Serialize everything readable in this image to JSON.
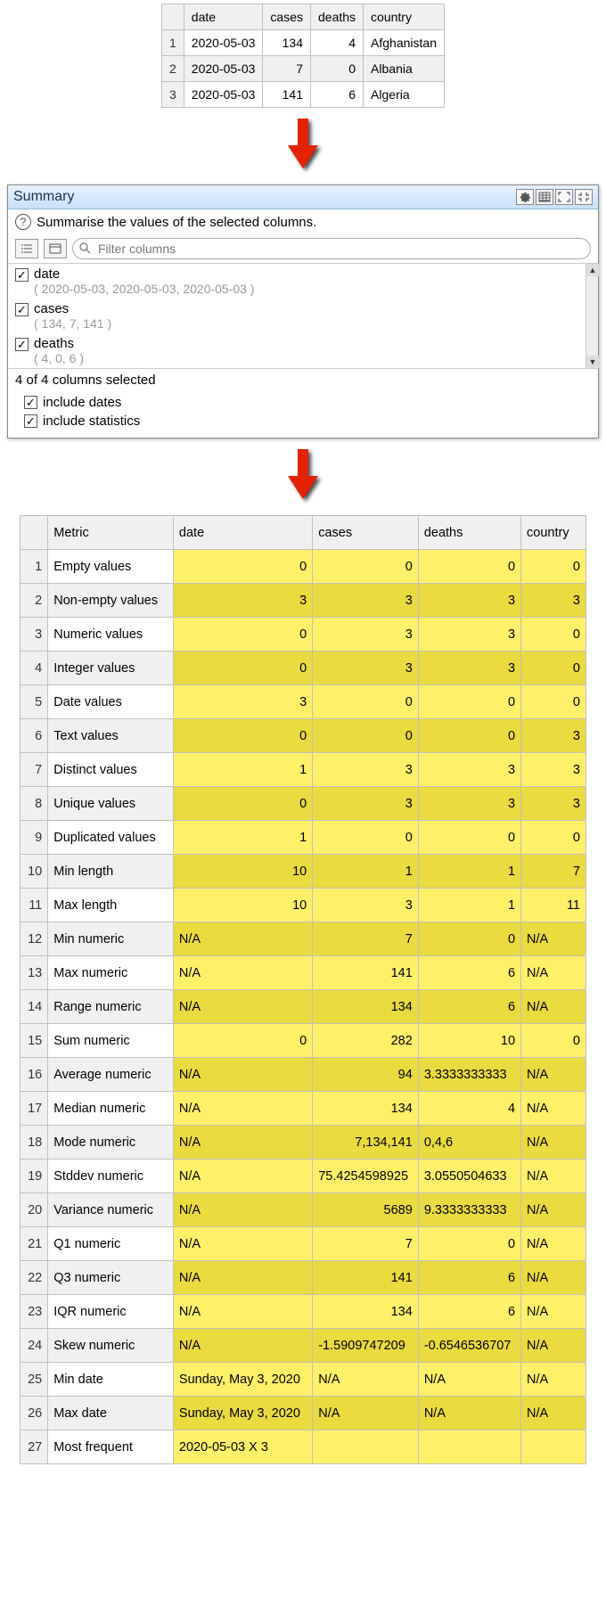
{
  "top_table": {
    "headers": [
      "date",
      "cases",
      "deaths",
      "country"
    ],
    "rows": [
      {
        "n": "1",
        "date": "2020-05-03",
        "cases": "134",
        "deaths": "4",
        "country": "Afghanistan"
      },
      {
        "n": "2",
        "date": "2020-05-03",
        "cases": "7",
        "deaths": "0",
        "country": "Albania"
      },
      {
        "n": "3",
        "date": "2020-05-03",
        "cases": "141",
        "deaths": "6",
        "country": "Algeria"
      }
    ]
  },
  "arrow_color": "#e32200",
  "summary": {
    "title": "Summary",
    "desc": "Summarise the values of the selected columns.",
    "filter_placeholder": "Filter columns",
    "columns": [
      {
        "checked": true,
        "name": "date",
        "values": "( 2020-05-03, 2020-05-03, 2020-05-03 )"
      },
      {
        "checked": true,
        "name": "cases",
        "values": "( 134, 7, 141 )"
      },
      {
        "checked": true,
        "name": "deaths",
        "values": "( 4, 0, 6 )"
      }
    ],
    "selected_text": "4 of 4 columns selected",
    "options": [
      {
        "checked": true,
        "label": "include dates"
      },
      {
        "checked": true,
        "label": "include statistics"
      }
    ]
  },
  "stats": {
    "headers": [
      "Metric",
      "date",
      "cases",
      "deaths",
      "country"
    ],
    "rows": [
      {
        "n": "1",
        "metric": "Empty values",
        "date": {
          "v": "0",
          "a": "r"
        },
        "cases": {
          "v": "0",
          "a": "r"
        },
        "deaths": {
          "v": "0",
          "a": "r"
        },
        "country": {
          "v": "0",
          "a": "r"
        }
      },
      {
        "n": "2",
        "metric": "Non-empty values",
        "date": {
          "v": "3",
          "a": "r"
        },
        "cases": {
          "v": "3",
          "a": "r"
        },
        "deaths": {
          "v": "3",
          "a": "r"
        },
        "country": {
          "v": "3",
          "a": "r"
        }
      },
      {
        "n": "3",
        "metric": "Numeric values",
        "date": {
          "v": "0",
          "a": "r"
        },
        "cases": {
          "v": "3",
          "a": "r"
        },
        "deaths": {
          "v": "3",
          "a": "r"
        },
        "country": {
          "v": "0",
          "a": "r"
        }
      },
      {
        "n": "4",
        "metric": "Integer values",
        "date": {
          "v": "0",
          "a": "r"
        },
        "cases": {
          "v": "3",
          "a": "r"
        },
        "deaths": {
          "v": "3",
          "a": "r"
        },
        "country": {
          "v": "0",
          "a": "r"
        }
      },
      {
        "n": "5",
        "metric": "Date values",
        "date": {
          "v": "3",
          "a": "r"
        },
        "cases": {
          "v": "0",
          "a": "r"
        },
        "deaths": {
          "v": "0",
          "a": "r"
        },
        "country": {
          "v": "0",
          "a": "r"
        }
      },
      {
        "n": "6",
        "metric": "Text values",
        "date": {
          "v": "0",
          "a": "r"
        },
        "cases": {
          "v": "0",
          "a": "r"
        },
        "deaths": {
          "v": "0",
          "a": "r"
        },
        "country": {
          "v": "3",
          "a": "r"
        }
      },
      {
        "n": "7",
        "metric": "Distinct values",
        "date": {
          "v": "1",
          "a": "r"
        },
        "cases": {
          "v": "3",
          "a": "r"
        },
        "deaths": {
          "v": "3",
          "a": "r"
        },
        "country": {
          "v": "3",
          "a": "r"
        }
      },
      {
        "n": "8",
        "metric": "Unique values",
        "date": {
          "v": "0",
          "a": "r"
        },
        "cases": {
          "v": "3",
          "a": "r"
        },
        "deaths": {
          "v": "3",
          "a": "r"
        },
        "country": {
          "v": "3",
          "a": "r"
        }
      },
      {
        "n": "9",
        "metric": "Duplicated values",
        "date": {
          "v": "1",
          "a": "r"
        },
        "cases": {
          "v": "0",
          "a": "r"
        },
        "deaths": {
          "v": "0",
          "a": "r"
        },
        "country": {
          "v": "0",
          "a": "r"
        }
      },
      {
        "n": "10",
        "metric": "Min length",
        "date": {
          "v": "10",
          "a": "r"
        },
        "cases": {
          "v": "1",
          "a": "r"
        },
        "deaths": {
          "v": "1",
          "a": "r"
        },
        "country": {
          "v": "7",
          "a": "r"
        }
      },
      {
        "n": "11",
        "metric": "Max length",
        "date": {
          "v": "10",
          "a": "r"
        },
        "cases": {
          "v": "3",
          "a": "r"
        },
        "deaths": {
          "v": "1",
          "a": "r"
        },
        "country": {
          "v": "11",
          "a": "r"
        }
      },
      {
        "n": "12",
        "metric": "Min numeric",
        "date": {
          "v": "N/A",
          "a": "l"
        },
        "cases": {
          "v": "7",
          "a": "r"
        },
        "deaths": {
          "v": "0",
          "a": "r"
        },
        "country": {
          "v": "N/A",
          "a": "l"
        }
      },
      {
        "n": "13",
        "metric": "Max numeric",
        "date": {
          "v": "N/A",
          "a": "l"
        },
        "cases": {
          "v": "141",
          "a": "r"
        },
        "deaths": {
          "v": "6",
          "a": "r"
        },
        "country": {
          "v": "N/A",
          "a": "l"
        }
      },
      {
        "n": "14",
        "metric": "Range numeric",
        "date": {
          "v": "N/A",
          "a": "l"
        },
        "cases": {
          "v": "134",
          "a": "r"
        },
        "deaths": {
          "v": "6",
          "a": "r"
        },
        "country": {
          "v": "N/A",
          "a": "l"
        }
      },
      {
        "n": "15",
        "metric": "Sum numeric",
        "date": {
          "v": "0",
          "a": "r"
        },
        "cases": {
          "v": "282",
          "a": "r"
        },
        "deaths": {
          "v": "10",
          "a": "r"
        },
        "country": {
          "v": "0",
          "a": "r"
        }
      },
      {
        "n": "16",
        "metric": "Average numeric",
        "date": {
          "v": "N/A",
          "a": "l"
        },
        "cases": {
          "v": "94",
          "a": "r"
        },
        "deaths": {
          "v": "3.3333333333",
          "a": "l"
        },
        "country": {
          "v": "N/A",
          "a": "l"
        }
      },
      {
        "n": "17",
        "metric": "Median numeric",
        "date": {
          "v": "N/A",
          "a": "l"
        },
        "cases": {
          "v": "134",
          "a": "r"
        },
        "deaths": {
          "v": "4",
          "a": "r"
        },
        "country": {
          "v": "N/A",
          "a": "l"
        }
      },
      {
        "n": "18",
        "metric": "Mode numeric",
        "date": {
          "v": "N/A",
          "a": "l"
        },
        "cases": {
          "v": "7,134,141",
          "a": "r"
        },
        "deaths": {
          "v": "0,4,6",
          "a": "l"
        },
        "country": {
          "v": "N/A",
          "a": "l"
        }
      },
      {
        "n": "19",
        "metric": "Stddev numeric",
        "date": {
          "v": "N/A",
          "a": "l"
        },
        "cases": {
          "v": "75.4254598925",
          "a": "l"
        },
        "deaths": {
          "v": "3.0550504633",
          "a": "l"
        },
        "country": {
          "v": "N/A",
          "a": "l"
        }
      },
      {
        "n": "20",
        "metric": "Variance numeric",
        "date": {
          "v": "N/A",
          "a": "l"
        },
        "cases": {
          "v": "5689",
          "a": "r"
        },
        "deaths": {
          "v": "9.3333333333",
          "a": "l"
        },
        "country": {
          "v": "N/A",
          "a": "l"
        }
      },
      {
        "n": "21",
        "metric": "Q1 numeric",
        "date": {
          "v": "N/A",
          "a": "l"
        },
        "cases": {
          "v": "7",
          "a": "r"
        },
        "deaths": {
          "v": "0",
          "a": "r"
        },
        "country": {
          "v": "N/A",
          "a": "l"
        }
      },
      {
        "n": "22",
        "metric": "Q3 numeric",
        "date": {
          "v": "N/A",
          "a": "l"
        },
        "cases": {
          "v": "141",
          "a": "r"
        },
        "deaths": {
          "v": "6",
          "a": "r"
        },
        "country": {
          "v": "N/A",
          "a": "l"
        }
      },
      {
        "n": "23",
        "metric": "IQR numeric",
        "date": {
          "v": "N/A",
          "a": "l"
        },
        "cases": {
          "v": "134",
          "a": "r"
        },
        "deaths": {
          "v": "6",
          "a": "r"
        },
        "country": {
          "v": "N/A",
          "a": "l"
        }
      },
      {
        "n": "24",
        "metric": "Skew numeric",
        "date": {
          "v": "N/A",
          "a": "l"
        },
        "cases": {
          "v": "-1.5909747209",
          "a": "l"
        },
        "deaths": {
          "v": "-0.6546536707",
          "a": "l"
        },
        "country": {
          "v": "N/A",
          "a": "l"
        }
      },
      {
        "n": "25",
        "metric": "Min date",
        "date": {
          "v": "Sunday, May 3, 2020",
          "a": "l"
        },
        "cases": {
          "v": "N/A",
          "a": "l"
        },
        "deaths": {
          "v": "N/A",
          "a": "l"
        },
        "country": {
          "v": "N/A",
          "a": "l"
        }
      },
      {
        "n": "26",
        "metric": "Max date",
        "date": {
          "v": "Sunday, May 3, 2020",
          "a": "l"
        },
        "cases": {
          "v": "N/A",
          "a": "l"
        },
        "deaths": {
          "v": "N/A",
          "a": "l"
        },
        "country": {
          "v": "N/A",
          "a": "l"
        }
      },
      {
        "n": "27",
        "metric": "Most frequent",
        "date": {
          "v": "2020-05-03 X 3",
          "a": "l"
        },
        "cases": {
          "v": "",
          "a": "l"
        },
        "deaths": {
          "v": "",
          "a": "l"
        },
        "country": {
          "v": "",
          "a": "l"
        }
      }
    ]
  }
}
